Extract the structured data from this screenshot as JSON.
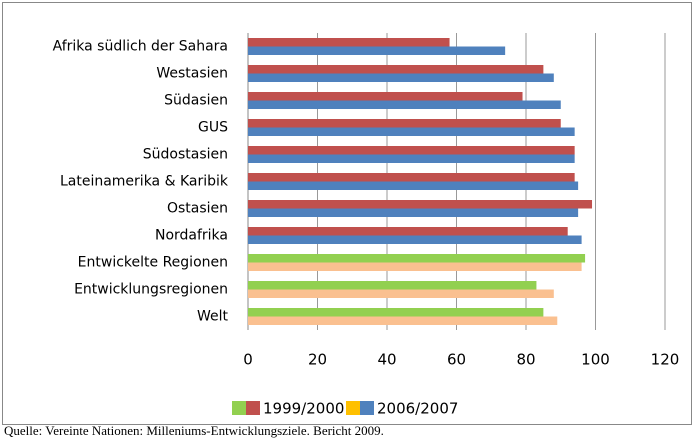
{
  "chart_data": {
    "type": "bar",
    "orientation": "horizontal",
    "categories": [
      "Afrika südlich der Sahara",
      "Westasien",
      "Südasien",
      "GUS",
      "Südostasien",
      "Lateinamerika & Karibik",
      "Ostasien",
      "Nordafrika",
      "Entwickelte Regionen",
      "Entwicklungsregionen",
      "Welt"
    ],
    "series": [
      {
        "name": "1999/2000",
        "values": [
          58,
          85,
          79,
          90,
          94,
          94,
          99,
          92,
          97,
          83,
          85
        ],
        "colors": [
          "#c0504d",
          "#c0504d",
          "#c0504d",
          "#c0504d",
          "#c0504d",
          "#c0504d",
          "#c0504d",
          "#c0504d",
          "#92d050",
          "#92d050",
          "#92d050"
        ],
        "legend_colors": [
          "#92d050",
          "#c0504d"
        ]
      },
      {
        "name": "2006/2007",
        "values": [
          74,
          88,
          90,
          94,
          94,
          95,
          95,
          96,
          96,
          88,
          89
        ],
        "colors": [
          "#4f81bd",
          "#4f81bd",
          "#4f81bd",
          "#4f81bd",
          "#4f81bd",
          "#4f81bd",
          "#4f81bd",
          "#4f81bd",
          "#fac090",
          "#fac090",
          "#fac090"
        ],
        "legend_colors": [
          "#ffc000",
          "#4f81bd"
        ]
      }
    ],
    "xlim": [
      0,
      120
    ],
    "xticks": [
      0,
      20,
      40,
      60,
      80,
      100,
      120
    ],
    "grid": true,
    "legend": "bottom",
    "source": "Quelle: Vereinte Nationen: Milleniums-Entwicklungsziele. Bericht 2009."
  }
}
